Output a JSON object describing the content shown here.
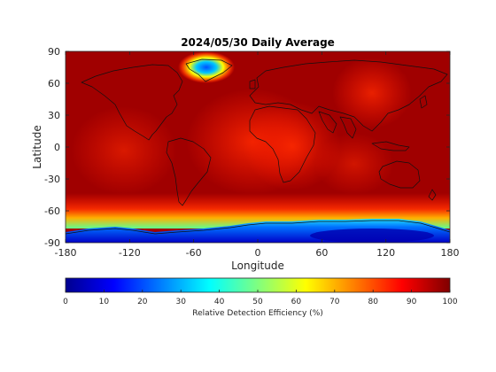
{
  "chart_data": {
    "type": "heatmap",
    "title": "2024/05/30 Daily Average",
    "xlabel": "Longitude",
    "ylabel": "Latitude",
    "xlim": [
      -180,
      180
    ],
    "ylim": [
      -90,
      90
    ],
    "x_ticks": [
      -180,
      -120,
      -60,
      0,
      60,
      120,
      180
    ],
    "y_ticks": [
      90,
      60,
      30,
      0,
      -30,
      -60,
      -90
    ],
    "colorbar": {
      "label": "Relative Detection Efficiency (%)",
      "range": [
        0,
        100
      ],
      "ticks": [
        0,
        10,
        20,
        30,
        40,
        50,
        60,
        70,
        80,
        90,
        100
      ],
      "colormap": "jet",
      "orientation": "horizontal",
      "placement": "below"
    },
    "field_description_values": {
      "background_percent": 97,
      "equatorial_regions_percent": 88,
      "greenland_minimum_percent": 15,
      "antarctica_interior_percent": 8,
      "antarctica_coast_percent": 35
    }
  },
  "colors": {
    "plot_background": "#7f0000",
    "coastline": "#111111",
    "axes": "#262626"
  }
}
